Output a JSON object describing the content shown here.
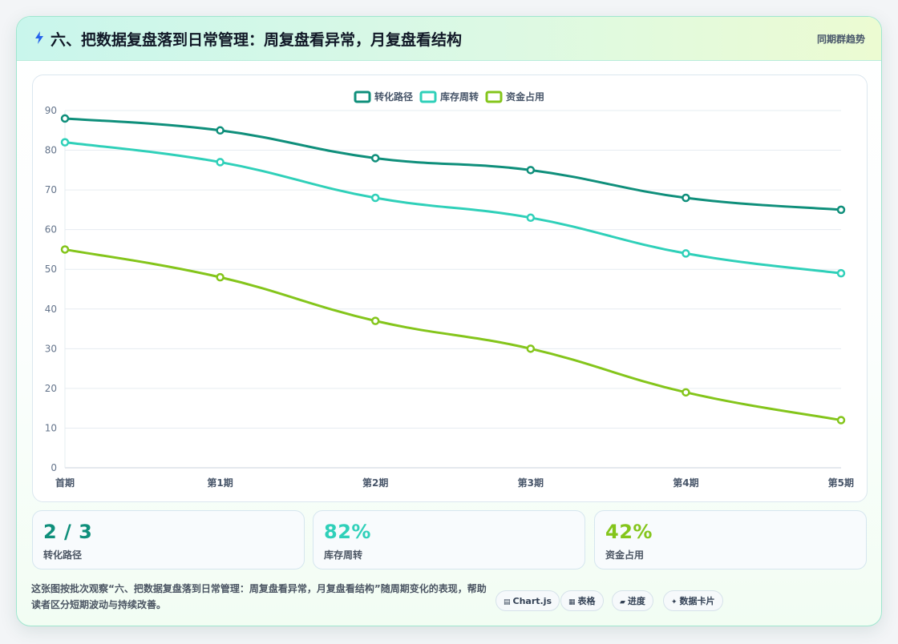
{
  "header": {
    "title": "六、把数据复盘落到日常管理：周复盘看异常，月复盘看结构",
    "right_label": "同期群趋势",
    "icon": "lightning-icon"
  },
  "chart_data": {
    "type": "line",
    "title": "",
    "xlabel": "",
    "ylabel": "",
    "categories": [
      "首期",
      "第1期",
      "第2期",
      "第3期",
      "第4期",
      "第5期"
    ],
    "ylim": [
      0,
      90
    ],
    "yticks": [
      0,
      10,
      20,
      30,
      40,
      50,
      60,
      70,
      80,
      90
    ],
    "grid": true,
    "legend_position": "top-center",
    "series": [
      {
        "name": "转化路径",
        "color": "#0f8f7b",
        "values": [
          88,
          85,
          78,
          75,
          68,
          65
        ]
      },
      {
        "name": "库存周转",
        "color": "#2fd0b9",
        "values": [
          82,
          77,
          68,
          63,
          54,
          49
        ]
      },
      {
        "name": "资金占用",
        "color": "#84c51b",
        "values": [
          55,
          48,
          37,
          30,
          19,
          12
        ]
      }
    ]
  },
  "stats": [
    {
      "value": "2 / 3",
      "label": "转化路径",
      "color": "#0f8f7b"
    },
    {
      "value": "82%",
      "label": "库存周转",
      "color": "#2fd0b9"
    },
    {
      "value": "42%",
      "label": "资金占用",
      "color": "#84c51b"
    }
  ],
  "footer": {
    "description": "这张图按批次观察“六、把数据复盘落到日常管理：周复盘看异常，月复盘看结构”随周期变化的表现，帮助读者区分短期波动与持续改善。",
    "tags": [
      {
        "label": "Chart.js",
        "icon": "▤",
        "icon_name": "chart-icon"
      },
      {
        "label": "表格",
        "icon": "▦",
        "icon_name": "table-icon"
      },
      {
        "label": "进度",
        "icon": "▰",
        "icon_name": "progress-icon"
      },
      {
        "label": "数据卡片",
        "icon": "✦",
        "icon_name": "sparkle-icon"
      }
    ]
  }
}
